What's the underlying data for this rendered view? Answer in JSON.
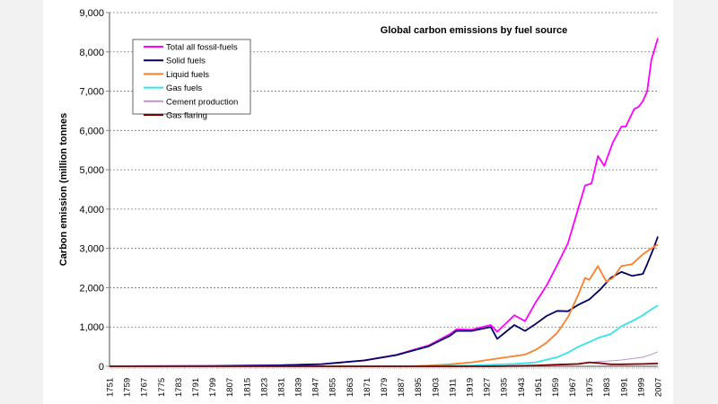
{
  "chart_data": {
    "type": "line",
    "title": "Global carbon emissions by fuel source",
    "xlabel": "",
    "ylabel": "Carbon emission (million tonnes",
    "xlim": [
      1751,
      2007
    ],
    "ylim": [
      0,
      9000
    ],
    "yticks": [
      0,
      1000,
      2000,
      3000,
      4000,
      5000,
      6000,
      7000,
      8000,
      9000
    ],
    "ytick_labels": [
      "0",
      "1,000",
      "2,000",
      "3,000",
      "4,000",
      "5,000",
      "6,000",
      "7,000",
      "8,000",
      "9,000"
    ],
    "xticks": [
      1751,
      1759,
      1767,
      1775,
      1783,
      1791,
      1799,
      1807,
      1815,
      1823,
      1831,
      1839,
      1847,
      1855,
      1863,
      1871,
      1879,
      1887,
      1895,
      1903,
      1911,
      1919,
      1927,
      1935,
      1943,
      1951,
      1959,
      1967,
      1975,
      1983,
      1991,
      1999,
      2007
    ],
    "grid": "horizontal dotted",
    "legend_position": "top-left",
    "series": [
      {
        "name": "Total all fossil-fuels",
        "color": "#ff00ff",
        "points": [
          [
            1751,
            3
          ],
          [
            1800,
            8
          ],
          [
            1830,
            25
          ],
          [
            1850,
            54
          ],
          [
            1870,
            150
          ],
          [
            1885,
            290
          ],
          [
            1900,
            530
          ],
          [
            1910,
            820
          ],
          [
            1913,
            940
          ],
          [
            1920,
            930
          ],
          [
            1929,
            1050
          ],
          [
            1932,
            880
          ],
          [
            1940,
            1300
          ],
          [
            1945,
            1150
          ],
          [
            1950,
            1630
          ],
          [
            1955,
            2050
          ],
          [
            1960,
            2580
          ],
          [
            1965,
            3130
          ],
          [
            1970,
            4050
          ],
          [
            1973,
            4600
          ],
          [
            1976,
            4650
          ],
          [
            1979,
            5350
          ],
          [
            1982,
            5100
          ],
          [
            1986,
            5700
          ],
          [
            1990,
            6100
          ],
          [
            1992,
            6100
          ],
          [
            1996,
            6550
          ],
          [
            1998,
            6600
          ],
          [
            2000,
            6750
          ],
          [
            2002,
            7000
          ],
          [
            2004,
            7800
          ],
          [
            2007,
            8350
          ]
        ]
      },
      {
        "name": "Solid fuels",
        "color": "#000066",
        "points": [
          [
            1751,
            3
          ],
          [
            1800,
            8
          ],
          [
            1830,
            25
          ],
          [
            1850,
            54
          ],
          [
            1870,
            148
          ],
          [
            1885,
            285
          ],
          [
            1900,
            510
          ],
          [
            1910,
            780
          ],
          [
            1913,
            900
          ],
          [
            1920,
            900
          ],
          [
            1929,
            1000
          ],
          [
            1932,
            700
          ],
          [
            1940,
            1050
          ],
          [
            1945,
            900
          ],
          [
            1950,
            1080
          ],
          [
            1955,
            1280
          ],
          [
            1960,
            1410
          ],
          [
            1965,
            1400
          ],
          [
            1970,
            1570
          ],
          [
            1975,
            1700
          ],
          [
            1980,
            1950
          ],
          [
            1985,
            2250
          ],
          [
            1990,
            2400
          ],
          [
            1995,
            2300
          ],
          [
            2000,
            2350
          ],
          [
            2002,
            2600
          ],
          [
            2005,
            3000
          ],
          [
            2007,
            3300
          ]
        ]
      },
      {
        "name": "Liquid fuels",
        "color": "#ff7f27",
        "points": [
          [
            1751,
            0
          ],
          [
            1890,
            0
          ],
          [
            1900,
            20
          ],
          [
            1910,
            50
          ],
          [
            1920,
            100
          ],
          [
            1930,
            180
          ],
          [
            1940,
            260
          ],
          [
            1945,
            300
          ],
          [
            1950,
            420
          ],
          [
            1955,
            600
          ],
          [
            1960,
            850
          ],
          [
            1965,
            1250
          ],
          [
            1970,
            1840
          ],
          [
            1973,
            2250
          ],
          [
            1975,
            2200
          ],
          [
            1979,
            2550
          ],
          [
            1983,
            2150
          ],
          [
            1986,
            2250
          ],
          [
            1990,
            2550
          ],
          [
            1995,
            2600
          ],
          [
            2000,
            2850
          ],
          [
            2004,
            3000
          ],
          [
            2007,
            3100
          ]
        ]
      },
      {
        "name": "Gas fuels",
        "color": "#33e6e6",
        "points": [
          [
            1751,
            0
          ],
          [
            1890,
            0
          ],
          [
            1900,
            5
          ],
          [
            1920,
            20
          ],
          [
            1930,
            40
          ],
          [
            1940,
            60
          ],
          [
            1950,
            100
          ],
          [
            1955,
            170
          ],
          [
            1960,
            230
          ],
          [
            1965,
            350
          ],
          [
            1970,
            500
          ],
          [
            1975,
            620
          ],
          [
            1980,
            740
          ],
          [
            1985,
            820
          ],
          [
            1990,
            1020
          ],
          [
            1995,
            1150
          ],
          [
            2000,
            1300
          ],
          [
            2004,
            1450
          ],
          [
            2007,
            1550
          ]
        ]
      },
      {
        "name": "Cement production",
        "color": "#b996c8",
        "points": [
          [
            1751,
            0
          ],
          [
            1920,
            0
          ],
          [
            1930,
            10
          ],
          [
            1950,
            20
          ],
          [
            1960,
            45
          ],
          [
            1970,
            70
          ],
          [
            1980,
            120
          ],
          [
            1990,
            160
          ],
          [
            2000,
            230
          ],
          [
            2004,
            300
          ],
          [
            2007,
            370
          ]
        ]
      },
      {
        "name": "Gas flaring",
        "color": "#800000",
        "points": [
          [
            1751,
            0
          ],
          [
            1930,
            0
          ],
          [
            1950,
            20
          ],
          [
            1960,
            40
          ],
          [
            1970,
            60
          ],
          [
            1975,
            100
          ],
          [
            1980,
            80
          ],
          [
            1985,
            50
          ],
          [
            1990,
            50
          ],
          [
            2000,
            60
          ],
          [
            2007,
            70
          ]
        ]
      }
    ]
  }
}
